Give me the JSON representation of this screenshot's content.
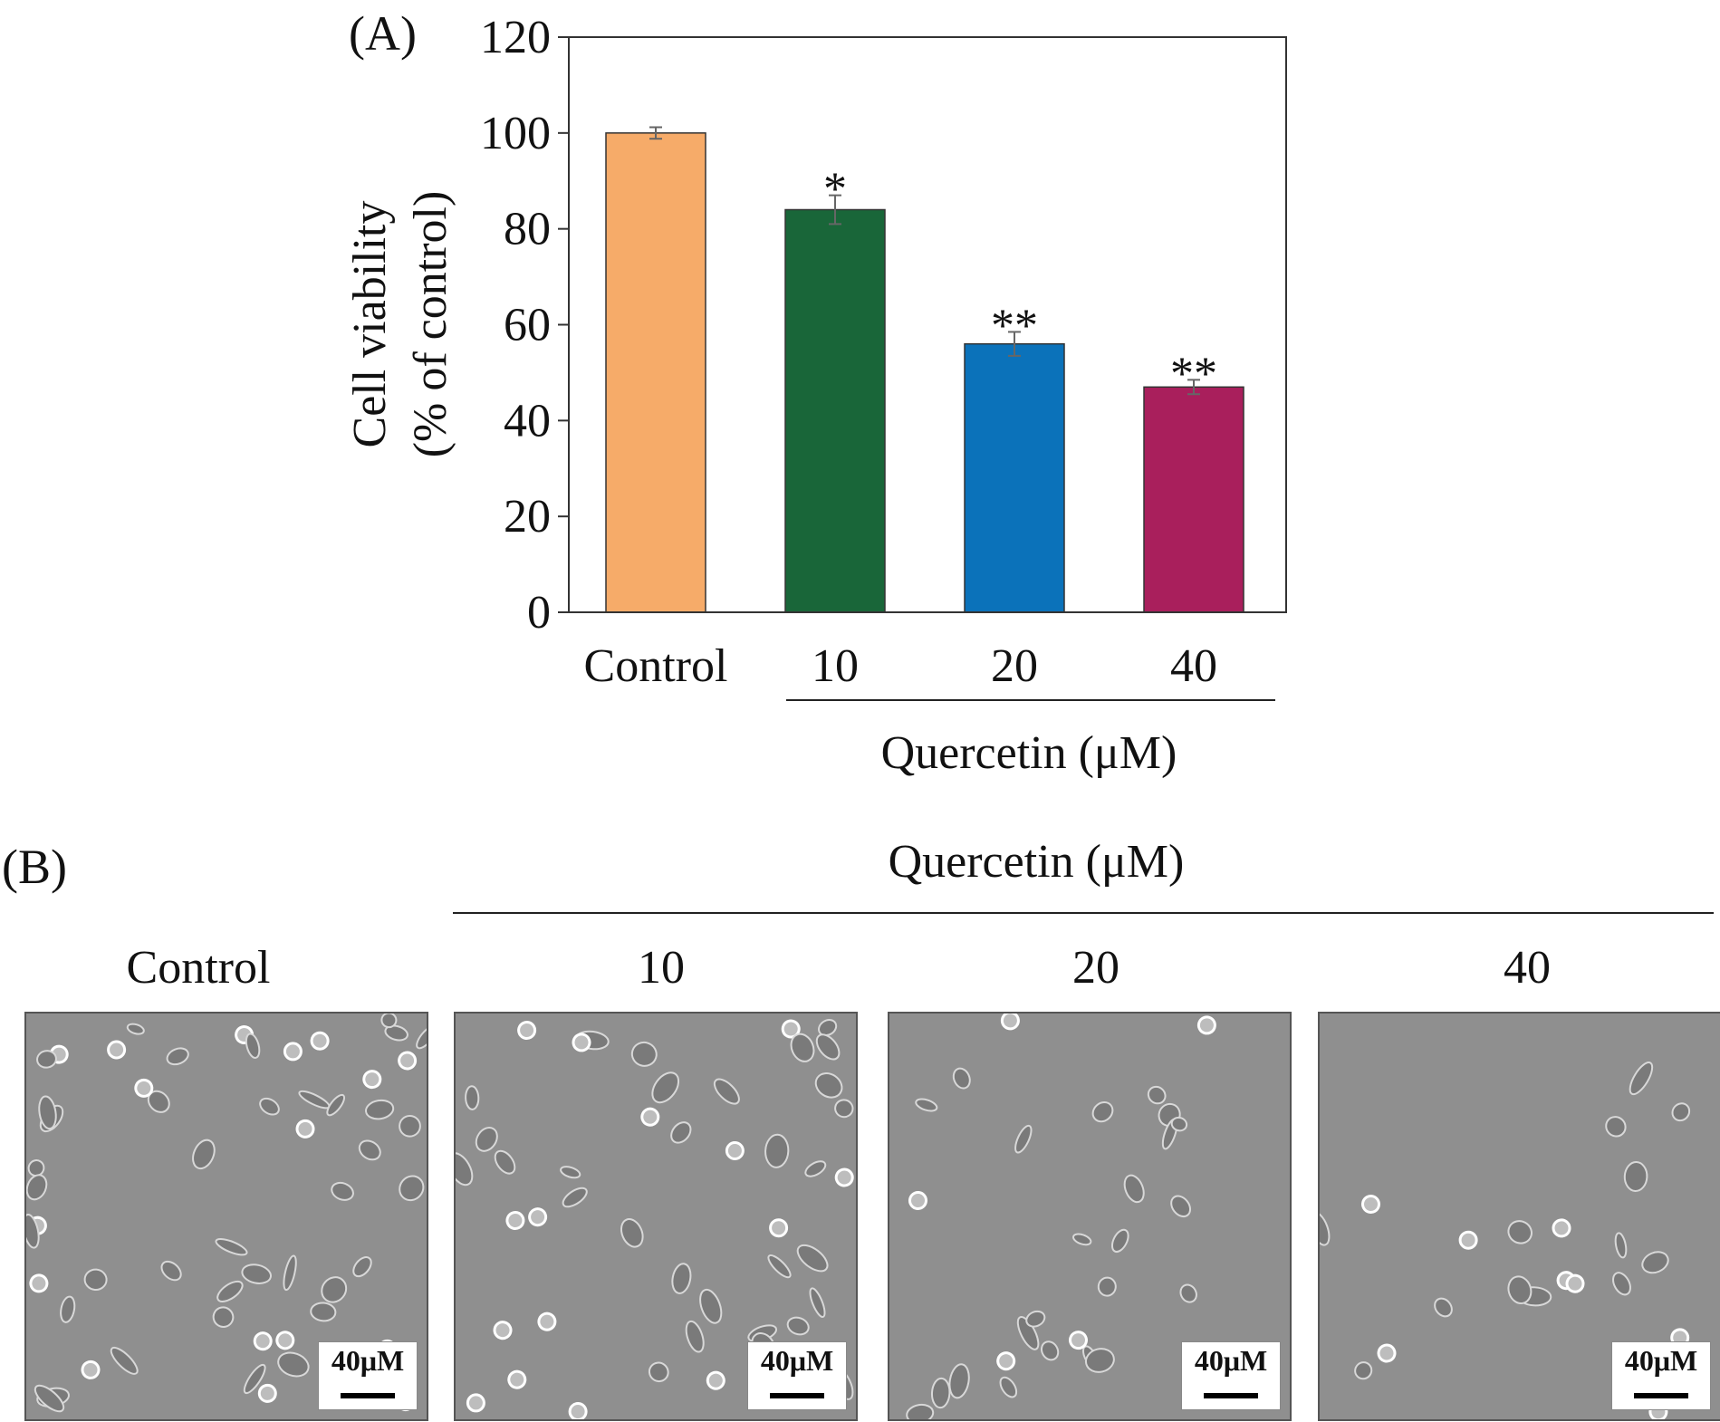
{
  "panel_a": {
    "label": "(A)",
    "group_label": "Quercetin (μM)"
  },
  "panel_b": {
    "label": "(B)",
    "group_label": "Quercetin (μM)",
    "images": [
      {
        "title": "Control",
        "scale_label": "40μM"
      },
      {
        "title": "10",
        "scale_label": "40μM"
      },
      {
        "title": "20",
        "scale_label": "40μM"
      },
      {
        "title": "40",
        "scale_label": "40μM"
      }
    ]
  },
  "chart_data": {
    "type": "bar",
    "categories": [
      "Control",
      "10",
      "20",
      "40"
    ],
    "values": [
      100,
      84,
      56,
      47
    ],
    "errors": [
      1.2,
      3,
      2.5,
      1.5
    ],
    "significance": [
      "",
      "*",
      "**",
      "**"
    ],
    "colors": [
      "#F6AB69",
      "#196639",
      "#0B72BA",
      "#A91F5C"
    ],
    "ylabel_line1": "Cell viability",
    "ylabel_line2": "(% of control)",
    "xlabel": "Quercetin (μM)",
    "ylim": [
      0,
      120
    ],
    "yticks": [
      0,
      20,
      40,
      60,
      80,
      100,
      120
    ]
  }
}
